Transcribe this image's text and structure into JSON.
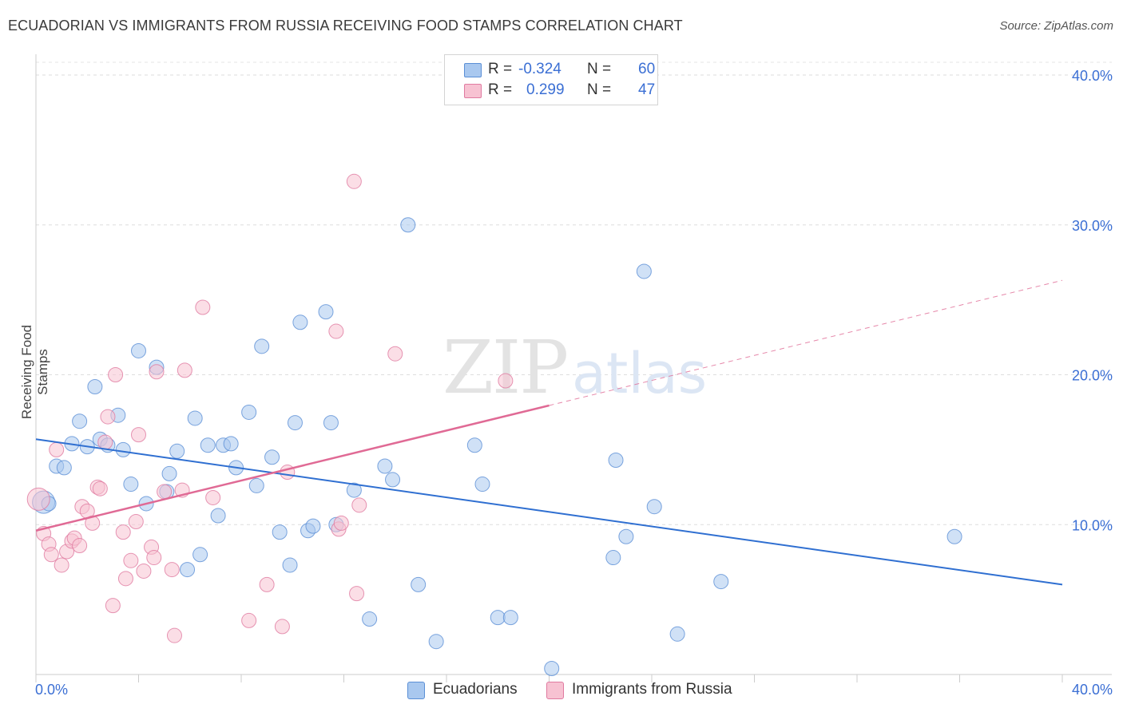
{
  "title": "ECUADORIAN VS IMMIGRANTS FROM RUSSIA RECEIVING FOOD STAMPS CORRELATION CHART",
  "source": "Source: ZipAtlas.com",
  "watermark": {
    "zip": "ZIP",
    "atlas": "atlas"
  },
  "legend": {
    "r_label": "R =",
    "n_label": "N =",
    "rows": [
      {
        "r": "-0.324",
        "n": "60",
        "color": "#a9c8ef",
        "edge": "#5b8fd6"
      },
      {
        "r": "0.299",
        "n": "47",
        "color": "#f7c2d2",
        "edge": "#e07aa0"
      }
    ]
  },
  "chart_data": {
    "type": "scatter",
    "title": "ECUADORIAN VS IMMIGRANTS FROM RUSSIA RECEIVING FOOD STAMPS CORRELATION CHART",
    "xlabel": "",
    "ylabel": "Receiving Food Stamps",
    "xlim": [
      0,
      40
    ],
    "ylim": [
      0,
      40
    ],
    "x_tick_labels": [
      "0.0%",
      "40.0%"
    ],
    "y_ticks": [
      10,
      20,
      30,
      40
    ],
    "y_tick_labels": [
      "10.0%",
      "20.0%",
      "30.0%",
      "40.0%"
    ],
    "grid": true,
    "legend_position": "top-center",
    "series": [
      {
        "name": "Ecuadorians",
        "color": "#a9c8ef",
        "edge": "#5b8fd6",
        "line_color": "#2f6fd1",
        "trend": {
          "x0": 0,
          "y0": 15.7,
          "x1": 40,
          "y1": 6.0,
          "dashed_from": null
        },
        "points": [
          [
            0.3,
            11.5
          ],
          [
            0.5,
            11.4
          ],
          [
            0.8,
            13.9
          ],
          [
            1.1,
            13.8
          ],
          [
            1.4,
            15.4
          ],
          [
            1.7,
            16.9
          ],
          [
            2.0,
            15.2
          ],
          [
            2.3,
            19.2
          ],
          [
            2.5,
            15.7
          ],
          [
            2.8,
            15.3
          ],
          [
            3.2,
            17.3
          ],
          [
            3.4,
            15.0
          ],
          [
            3.7,
            12.7
          ],
          [
            4.0,
            21.6
          ],
          [
            4.3,
            11.4
          ],
          [
            4.7,
            20.5
          ],
          [
            5.1,
            12.2
          ],
          [
            5.2,
            13.4
          ],
          [
            5.5,
            14.9
          ],
          [
            5.9,
            7.0
          ],
          [
            6.2,
            17.1
          ],
          [
            6.4,
            8.0
          ],
          [
            6.7,
            15.3
          ],
          [
            7.1,
            10.6
          ],
          [
            7.3,
            15.3
          ],
          [
            7.6,
            15.4
          ],
          [
            7.8,
            13.8
          ],
          [
            8.3,
            17.5
          ],
          [
            8.6,
            12.6
          ],
          [
            8.8,
            21.9
          ],
          [
            9.2,
            14.5
          ],
          [
            9.5,
            9.5
          ],
          [
            9.9,
            7.3
          ],
          [
            10.1,
            16.8
          ],
          [
            10.3,
            23.5
          ],
          [
            10.6,
            9.6
          ],
          [
            10.8,
            9.9
          ],
          [
            11.3,
            24.2
          ],
          [
            11.5,
            16.8
          ],
          [
            11.7,
            10.0
          ],
          [
            12.4,
            12.3
          ],
          [
            13.0,
            3.7
          ],
          [
            13.6,
            13.9
          ],
          [
            13.9,
            13.0
          ],
          [
            14.5,
            30.0
          ],
          [
            14.9,
            6.0
          ],
          [
            15.6,
            2.2
          ],
          [
            17.1,
            15.3
          ],
          [
            17.4,
            12.7
          ],
          [
            18.0,
            3.8
          ],
          [
            18.5,
            3.8
          ],
          [
            20.1,
            0.4
          ],
          [
            22.5,
            7.8
          ],
          [
            22.6,
            14.3
          ],
          [
            23.0,
            9.2
          ],
          [
            23.7,
            26.9
          ],
          [
            24.1,
            11.2
          ],
          [
            25.0,
            2.7
          ],
          [
            26.7,
            6.2
          ],
          [
            35.8,
            9.2
          ]
        ]
      },
      {
        "name": "Immigrants from Russia",
        "color": "#f7c2d2",
        "edge": "#e07aa0",
        "line_color": "#e06a95",
        "trend": {
          "x0": 0,
          "y0": 9.6,
          "x1": 40,
          "y1": 26.3,
          "dashed_from": 20
        },
        "points": [
          [
            0.1,
            11.7
          ],
          [
            0.3,
            9.4
          ],
          [
            0.5,
            8.7
          ],
          [
            0.6,
            8.0
          ],
          [
            0.8,
            15.0
          ],
          [
            1.0,
            7.3
          ],
          [
            1.2,
            8.2
          ],
          [
            1.4,
            8.9
          ],
          [
            1.5,
            9.1
          ],
          [
            1.7,
            8.6
          ],
          [
            1.8,
            11.2
          ],
          [
            2.0,
            10.9
          ],
          [
            2.2,
            10.1
          ],
          [
            2.4,
            12.5
          ],
          [
            2.5,
            12.4
          ],
          [
            2.7,
            15.5
          ],
          [
            2.8,
            17.2
          ],
          [
            3.0,
            4.6
          ],
          [
            3.1,
            20.0
          ],
          [
            3.4,
            9.5
          ],
          [
            3.5,
            6.4
          ],
          [
            3.7,
            7.6
          ],
          [
            3.9,
            10.2
          ],
          [
            4.0,
            16.0
          ],
          [
            4.2,
            6.9
          ],
          [
            4.5,
            8.5
          ],
          [
            4.6,
            7.8
          ],
          [
            4.7,
            20.2
          ],
          [
            5.0,
            12.2
          ],
          [
            5.3,
            7.0
          ],
          [
            5.4,
            2.6
          ],
          [
            5.7,
            12.3
          ],
          [
            5.8,
            20.3
          ],
          [
            6.5,
            24.5
          ],
          [
            6.9,
            11.8
          ],
          [
            8.3,
            3.6
          ],
          [
            9.0,
            6.0
          ],
          [
            9.6,
            3.2
          ],
          [
            9.8,
            13.5
          ],
          [
            11.7,
            22.9
          ],
          [
            11.8,
            9.7
          ],
          [
            11.9,
            10.1
          ],
          [
            12.5,
            5.4
          ],
          [
            12.6,
            11.3
          ],
          [
            12.4,
            32.9
          ],
          [
            14.0,
            21.4
          ],
          [
            18.3,
            19.6
          ]
        ]
      }
    ]
  }
}
